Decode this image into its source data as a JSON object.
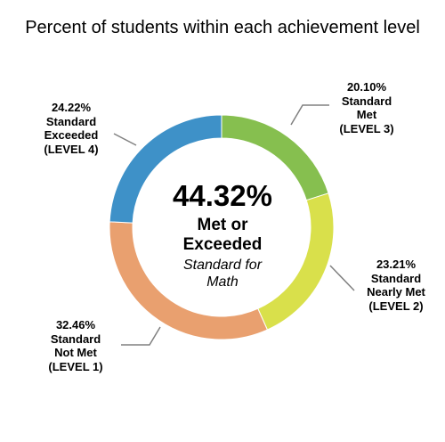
{
  "chart_data": {
    "type": "pie",
    "title": "Percent of students within each achievement level",
    "center": {
      "value": "44.32%",
      "line1": "Met or",
      "line2": "Exceeded",
      "line3": "Standard for",
      "line4": "Math"
    },
    "segments": [
      {
        "value": 20.1,
        "pct_label": "20.10%",
        "lines": [
          "Standard",
          "Met",
          "(LEVEL 3)"
        ],
        "color": "#86bf4f"
      },
      {
        "value": 23.21,
        "pct_label": "23.21%",
        "lines": [
          "Standard",
          "Nearly Met",
          "(LEVEL 2)"
        ],
        "color": "#d9e04b"
      },
      {
        "value": 32.46,
        "pct_label": "32.46%",
        "lines": [
          "Standard",
          "Not Met",
          "(LEVEL 1)"
        ],
        "color": "#e9a06f"
      },
      {
        "value": 24.22,
        "pct_label": "24.22%",
        "lines": [
          "Standard",
          "Exceeded",
          "(LEVEL 4)"
        ],
        "color": "#3e91c8"
      }
    ],
    "leader_line_color": "#808080"
  }
}
